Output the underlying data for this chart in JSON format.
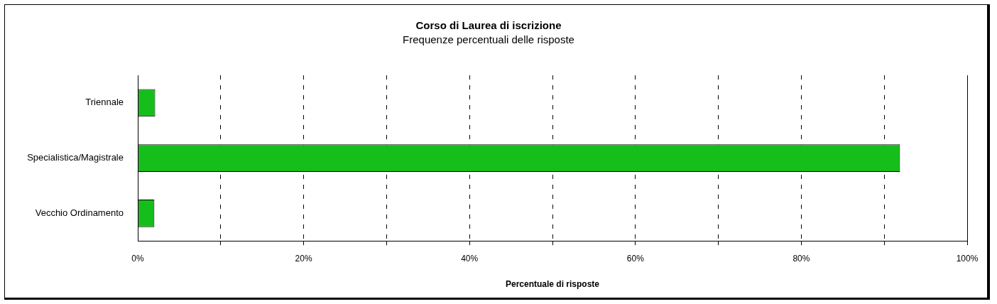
{
  "chart_data": {
    "type": "bar",
    "orientation": "horizontal",
    "title": "Corso di Laurea di iscrizione",
    "subtitle": "Frequenze percentuali delle risposte",
    "xlabel": "Percentuale di risposte",
    "categories": [
      "Triennale",
      "Specialistica/Magistrale",
      "Vecchio Ordinamento"
    ],
    "values": [
      2.1,
      91.9,
      2.0
    ],
    "color": "#16be1b",
    "xlim": [
      0,
      100
    ],
    "xticks": [
      {
        "value": 0,
        "label": "0%"
      },
      {
        "value": 10,
        "label": null
      },
      {
        "value": 20,
        "label": "20%"
      },
      {
        "value": 30,
        "label": null
      },
      {
        "value": 40,
        "label": "40%"
      },
      {
        "value": 50,
        "label": null
      },
      {
        "value": 60,
        "label": "60%"
      },
      {
        "value": 70,
        "label": null
      },
      {
        "value": 80,
        "label": "80%"
      },
      {
        "value": 90,
        "label": null
      },
      {
        "value": 100,
        "label": "100%"
      }
    ],
    "grid": "x",
    "legend": false
  }
}
